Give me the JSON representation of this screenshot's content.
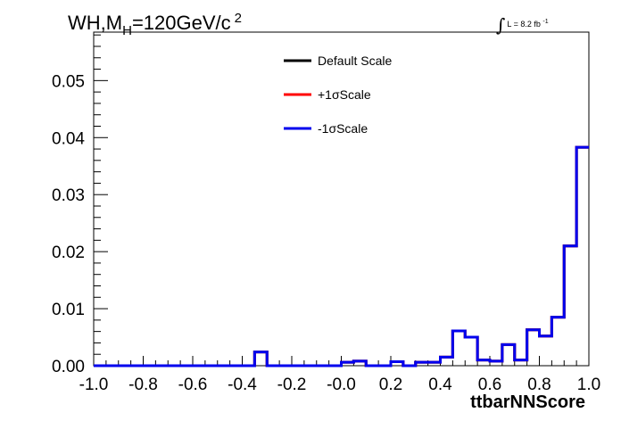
{
  "title": {
    "main": "WH,M",
    "sub": "H",
    "value": "=120GeV/c",
    "sup": "2"
  },
  "luminosity": {
    "symbol": "∫",
    "text": "L = 8.2 fb",
    "sup": "-1"
  },
  "chart_data": {
    "type": "line",
    "xlabel": "ttbarNNScore",
    "ylabel": "",
    "xlim": [
      -1.0,
      1.0
    ],
    "ylim": [
      0.0,
      0.0585
    ],
    "xticks": [
      "-1.0",
      "-0.8",
      "-0.6",
      "-0.4",
      "-0.2",
      "-0.0",
      "0.2",
      "0.4",
      "0.6",
      "0.8",
      "1.0"
    ],
    "yticks": [
      "0.00",
      "0.01",
      "0.02",
      "0.03",
      "0.04",
      "0.05"
    ],
    "legend_position": "top-center",
    "bin_edges": [
      -1.0,
      -0.95,
      -0.9,
      -0.85,
      -0.8,
      -0.75,
      -0.7,
      -0.65,
      -0.6,
      -0.55,
      -0.5,
      -0.45,
      -0.4,
      -0.35,
      -0.3,
      -0.25,
      -0.2,
      -0.15,
      -0.1,
      -0.05,
      0.0,
      0.05,
      0.1,
      0.15,
      0.2,
      0.25,
      0.3,
      0.35,
      0.4,
      0.45,
      0.5,
      0.55,
      0.6,
      0.65,
      0.7,
      0.75,
      0.8,
      0.85,
      0.9,
      0.95,
      1.0
    ],
    "series": [
      {
        "name": "Default Scale",
        "color": "#000000",
        "values": [
          0,
          0,
          0,
          0,
          0,
          0,
          0,
          0,
          0,
          0,
          0,
          0,
          0,
          0.0024,
          0,
          0,
          0,
          0,
          0,
          0,
          0.0006,
          0.0008,
          0,
          0,
          0.0007,
          0,
          0.0006,
          0.0006,
          0.0015,
          0.0061,
          0.005,
          0.001,
          0.0008,
          0.0037,
          0.001,
          0.0063,
          0.0052,
          0.0085,
          0.021,
          0.0383
        ]
      },
      {
        "name": "+1σScale",
        "color": "#ff0000",
        "values": [
          0,
          0,
          0,
          0,
          0,
          0,
          0,
          0,
          0,
          0,
          0,
          0,
          0,
          0.0024,
          0,
          0,
          0,
          0,
          0,
          0,
          0.0006,
          0.0008,
          0,
          0,
          0.0007,
          0,
          0.0006,
          0.0006,
          0.0015,
          0.0061,
          0.005,
          0.001,
          0.0008,
          0.0037,
          0.001,
          0.0063,
          0.0052,
          0.0085,
          0.021,
          0.0383
        ]
      },
      {
        "name": "-1σScale",
        "color": "#0000ee",
        "values": [
          0,
          0,
          0,
          0,
          0,
          0,
          0,
          0,
          0,
          0,
          0,
          0,
          0,
          0.0024,
          0,
          0,
          0,
          0,
          0,
          0,
          0.0006,
          0.0008,
          0,
          0,
          0.0007,
          0,
          0.0006,
          0.0006,
          0.0015,
          0.0061,
          0.005,
          0.001,
          0.0008,
          0.0037,
          0.001,
          0.0063,
          0.0052,
          0.0085,
          0.021,
          0.0383
        ]
      }
    ]
  }
}
